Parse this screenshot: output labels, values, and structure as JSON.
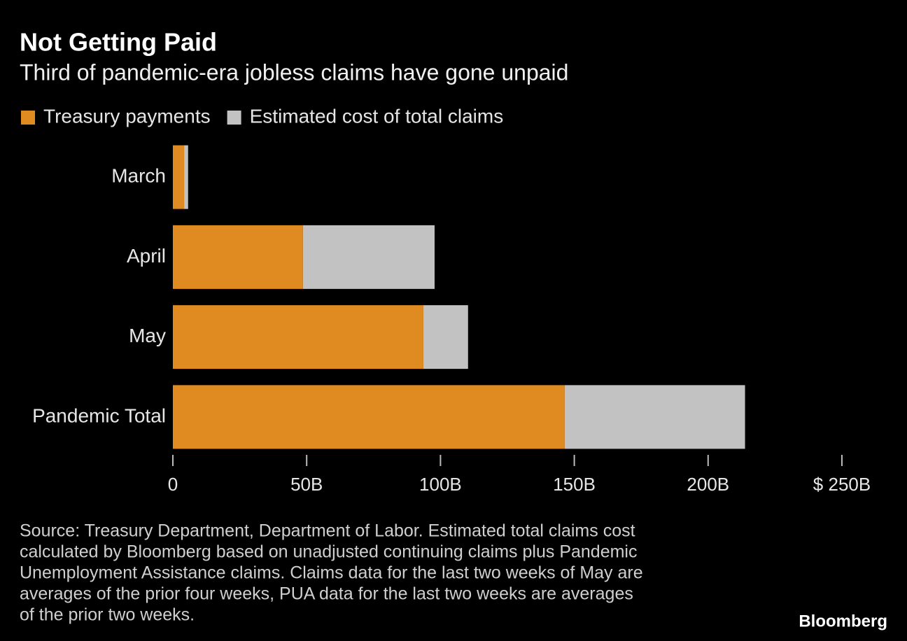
{
  "chart_data": {
    "type": "stacked-barh",
    "title": "Not Getting Paid",
    "subtitle": "Third of pandemic-era jobless claims have gone unpaid",
    "categories": [
      "March",
      "April",
      "May",
      "Pandemic Total"
    ],
    "series": [
      {
        "name": "Treasury payments",
        "color": "#e08a22",
        "values": [
          4.2,
          48.6,
          93.6,
          146.4
        ]
      },
      {
        "name": "Estimated cost of total claims",
        "color": "#c2c2c2",
        "values": [
          1.5,
          49.2,
          16.7,
          67.4
        ]
      }
    ],
    "xlim": [
      0,
      250
    ],
    "xticks": [
      0,
      {
        "value": 50,
        "label": "50B"
      },
      {
        "value": 100,
        "label": "100B"
      },
      {
        "value": 150,
        "label": "150B"
      },
      {
        "value": 200,
        "label": "200B"
      },
      {
        "value": 250,
        "label": "$ 250B"
      }
    ],
    "grid": false,
    "source": [
      "Source: Treasury Department, Department of Labor. Estimated total claims cost",
      "calculated by Bloomberg based on unadjusted continuing claims plus Pandemic",
      "Unemployment Assistance claims. Claims data for the last two weeks of May are",
      "averages of the prior four weeks, PUA data for the last two weeks are averages",
      "of the prior two weeks."
    ],
    "brand": "Bloomberg"
  }
}
